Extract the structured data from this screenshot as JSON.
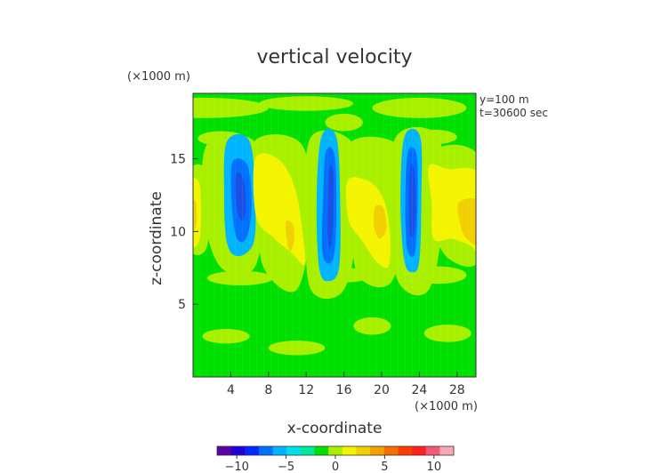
{
  "chart_data": {
    "type": "heatmap",
    "title": "vertical velocity",
    "xlabel": "x-coordinate",
    "ylabel": "z-coordinate",
    "x_unit": "(×1000 m)",
    "y_unit": "(×1000 m)",
    "annotations": [
      "y=100 m",
      "t=30600 sec"
    ],
    "xlim": [
      0,
      30
    ],
    "ylim": [
      0,
      19.5
    ],
    "x_ticks": [
      4,
      8,
      12,
      16,
      20,
      24,
      28
    ],
    "y_ticks": [
      5,
      10,
      15
    ],
    "grid": false,
    "colorbar": {
      "position": "bottom",
      "range": [
        -12,
        12
      ],
      "ticks": [
        -10,
        -5,
        0,
        5,
        10
      ],
      "colors": [
        "#5b00a8",
        "#2400d8",
        "#0028ff",
        "#0070ff",
        "#00b4ff",
        "#00e0e8",
        "#00e8a0",
        "#00e000",
        "#a8f000",
        "#f4f400",
        "#f0d000",
        "#f4a000",
        "#f47000",
        "#ff3c00",
        "#ff2020",
        "#f05a78",
        "#f8a8b4"
      ]
    },
    "contour_bands": [
      {
        "level": -2,
        "color": "#00b4ff"
      },
      {
        "level": -4,
        "color": "#0070ff"
      },
      {
        "level": -6,
        "color": "#1a50e6"
      },
      {
        "level": 1,
        "color": "#a8f000"
      },
      {
        "level": 2,
        "color": "#f4f400"
      },
      {
        "level": 4,
        "color": "#f0d000"
      }
    ],
    "features": [
      {
        "kind": "downdraft",
        "x": 4.8,
        "z": 12.0,
        "min": -6
      },
      {
        "kind": "updraft",
        "x": 9.0,
        "z": 12.0,
        "max": 4
      },
      {
        "kind": "downdraft",
        "x": 14.5,
        "z": 11.5,
        "min": -6
      },
      {
        "kind": "updraft",
        "x": 19.0,
        "z": 11.5,
        "max": 4
      },
      {
        "kind": "downdraft",
        "x": 23.5,
        "z": 11.5,
        "min": -6
      },
      {
        "kind": "updraft",
        "x": 28.5,
        "z": 11.0,
        "max": 4
      }
    ]
  }
}
